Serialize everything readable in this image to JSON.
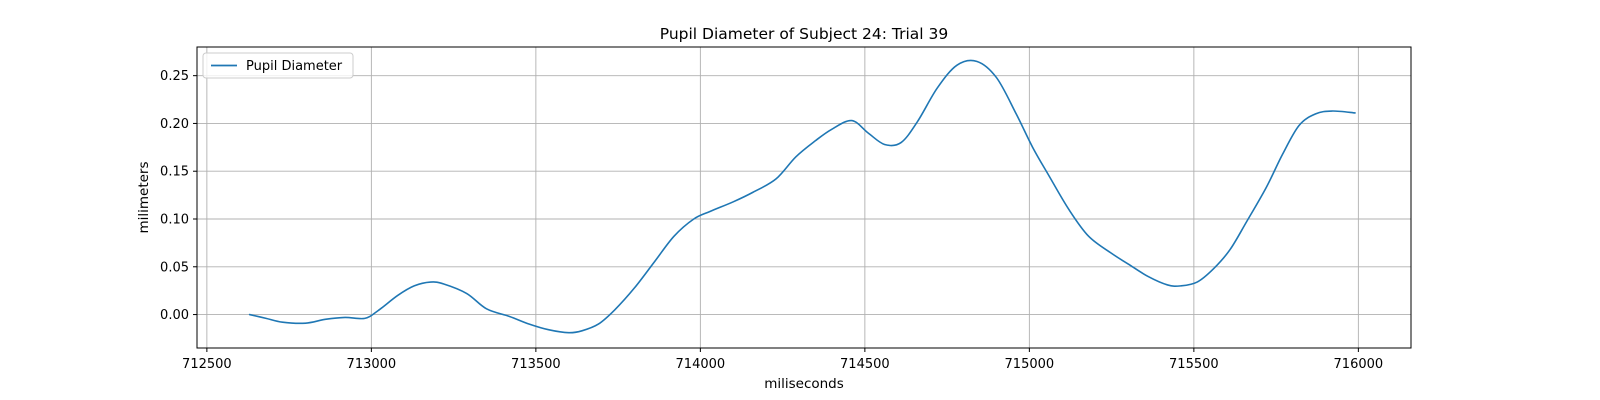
{
  "chart_data": {
    "type": "line",
    "title": "Pupil Diameter of Subject 24: Trial 39",
    "xlabel": "miliseconds",
    "ylabel": "milimeters",
    "xlim": [
      712470,
      716160
    ],
    "ylim": [
      -0.035,
      0.28
    ],
    "xticks": [
      712500,
      713000,
      713500,
      714000,
      714500,
      715000,
      715500,
      716000
    ],
    "yticks": [
      0.0,
      0.05,
      0.1,
      0.15,
      0.2,
      0.25
    ],
    "xtick_labels": [
      "712500",
      "713000",
      "713500",
      "714000",
      "714500",
      "715000",
      "715500",
      "716000"
    ],
    "ytick_labels": [
      "0.00",
      "0.05",
      "0.10",
      "0.15",
      "0.20",
      "0.25"
    ],
    "grid": true,
    "legend_position": "upper-left",
    "series": [
      {
        "name": "Pupil Diameter",
        "color": "#1f77b4",
        "x": [
          712630,
          712680,
          712730,
          712800,
          712860,
          712920,
          712980,
          713020,
          713080,
          713130,
          713180,
          713220,
          713290,
          713350,
          713420,
          713480,
          713540,
          713600,
          713640,
          713690,
          713740,
          713800,
          713860,
          713920,
          713980,
          714030,
          714100,
          714160,
          714230,
          714290,
          714350,
          714400,
          714460,
          714510,
          714560,
          714610,
          714660,
          714720,
          714780,
          714840,
          714900,
          714960,
          715010,
          715060,
          715120,
          715180,
          715250,
          715300,
          715360,
          715420,
          715460,
          715510,
          715560,
          715610,
          715660,
          715720,
          715770,
          715820,
          715870,
          715920,
          715990
        ],
        "y": [
          0.0,
          -0.004,
          -0.008,
          -0.009,
          -0.005,
          -0.003,
          -0.004,
          0.004,
          0.02,
          0.03,
          0.034,
          0.032,
          0.022,
          0.006,
          -0.002,
          -0.01,
          -0.016,
          -0.019,
          -0.017,
          -0.01,
          0.005,
          0.028,
          0.055,
          0.082,
          0.1,
          0.108,
          0.118,
          0.128,
          0.142,
          0.165,
          0.182,
          0.194,
          0.203,
          0.19,
          0.178,
          0.18,
          0.202,
          0.237,
          0.261,
          0.265,
          0.248,
          0.21,
          0.175,
          0.145,
          0.11,
          0.082,
          0.064,
          0.053,
          0.04,
          0.031,
          0.03,
          0.034,
          0.048,
          0.068,
          0.097,
          0.133,
          0.168,
          0.198,
          0.21,
          0.213,
          0.211
        ]
      }
    ]
  }
}
